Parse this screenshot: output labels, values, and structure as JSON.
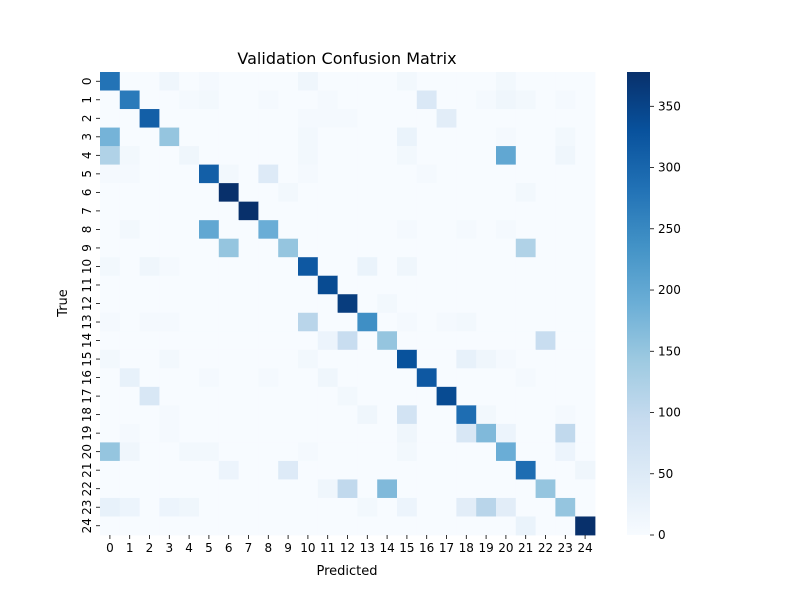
{
  "chart_data": {
    "type": "heatmap",
    "title": "Validation Confusion Matrix",
    "xlabel": "Predicted",
    "ylabel": "True",
    "x_ticks": [
      "0",
      "1",
      "2",
      "3",
      "4",
      "5",
      "6",
      "7",
      "8",
      "9",
      "10",
      "11",
      "12",
      "13",
      "14",
      "15",
      "16",
      "17",
      "18",
      "19",
      "20",
      "21",
      "22",
      "23",
      "24"
    ],
    "y_ticks": [
      "0",
      "1",
      "2",
      "3",
      "4",
      "5",
      "6",
      "7",
      "8",
      "9",
      "10",
      "11",
      "12",
      "13",
      "14",
      "15",
      "16",
      "17",
      "18",
      "19",
      "20",
      "21",
      "22",
      "23",
      "24"
    ],
    "colorbar": {
      "min": 0,
      "max": 378,
      "ticks": [
        0,
        50,
        100,
        150,
        200,
        250,
        300,
        350
      ]
    },
    "colormap": "Blues",
    "matrix": [
      [
        280,
        0,
        0,
        15,
        0,
        5,
        0,
        0,
        0,
        0,
        15,
        0,
        0,
        0,
        0,
        10,
        0,
        0,
        0,
        0,
        10,
        0,
        0,
        0,
        0
      ],
      [
        0,
        270,
        0,
        0,
        5,
        10,
        0,
        0,
        5,
        0,
        0,
        5,
        0,
        0,
        0,
        0,
        55,
        0,
        0,
        5,
        15,
        10,
        0,
        5,
        0
      ],
      [
        0,
        0,
        310,
        0,
        0,
        0,
        0,
        0,
        0,
        0,
        5,
        5,
        5,
        0,
        0,
        0,
        0,
        40,
        0,
        0,
        0,
        0,
        0,
        0,
        0
      ],
      [
        180,
        0,
        0,
        150,
        0,
        0,
        0,
        0,
        0,
        0,
        10,
        0,
        0,
        0,
        0,
        25,
        0,
        0,
        0,
        0,
        5,
        0,
        0,
        10,
        0
      ],
      [
        120,
        10,
        0,
        0,
        15,
        0,
        0,
        0,
        0,
        0,
        10,
        0,
        0,
        0,
        0,
        10,
        0,
        0,
        0,
        0,
        200,
        0,
        0,
        15,
        0
      ],
      [
        5,
        5,
        0,
        0,
        0,
        310,
        10,
        0,
        50,
        0,
        5,
        0,
        0,
        0,
        0,
        0,
        5,
        0,
        0,
        0,
        0,
        0,
        0,
        0,
        0
      ],
      [
        0,
        0,
        0,
        0,
        0,
        0,
        378,
        0,
        0,
        10,
        0,
        0,
        0,
        0,
        0,
        0,
        0,
        0,
        0,
        0,
        0,
        10,
        0,
        0,
        0
      ],
      [
        0,
        0,
        0,
        0,
        0,
        0,
        0,
        378,
        0,
        0,
        0,
        0,
        0,
        0,
        0,
        0,
        0,
        0,
        0,
        0,
        0,
        0,
        0,
        0,
        0
      ],
      [
        0,
        10,
        0,
        0,
        0,
        200,
        0,
        0,
        190,
        0,
        0,
        0,
        0,
        0,
        0,
        5,
        0,
        0,
        5,
        0,
        5,
        0,
        0,
        0,
        0
      ],
      [
        0,
        0,
        0,
        0,
        0,
        0,
        150,
        0,
        0,
        150,
        0,
        0,
        0,
        0,
        0,
        0,
        0,
        0,
        0,
        0,
        0,
        120,
        0,
        0,
        0
      ],
      [
        10,
        0,
        15,
        5,
        0,
        0,
        0,
        0,
        0,
        0,
        320,
        0,
        0,
        25,
        0,
        15,
        0,
        0,
        0,
        0,
        0,
        0,
        0,
        0,
        0
      ],
      [
        0,
        0,
        0,
        0,
        0,
        0,
        0,
        0,
        0,
        0,
        0,
        340,
        0,
        0,
        0,
        0,
        0,
        0,
        0,
        0,
        0,
        0,
        0,
        0,
        0
      ],
      [
        0,
        0,
        0,
        0,
        0,
        0,
        0,
        0,
        0,
        0,
        0,
        0,
        360,
        0,
        10,
        0,
        0,
        0,
        0,
        0,
        0,
        0,
        0,
        0,
        0
      ],
      [
        5,
        0,
        5,
        5,
        0,
        0,
        0,
        0,
        0,
        0,
        110,
        0,
        0,
        240,
        0,
        5,
        0,
        5,
        10,
        0,
        0,
        0,
        0,
        0,
        0
      ],
      [
        0,
        0,
        0,
        0,
        0,
        0,
        0,
        0,
        0,
        0,
        0,
        20,
        90,
        0,
        150,
        0,
        0,
        0,
        0,
        0,
        0,
        0,
        90,
        0,
        0
      ],
      [
        10,
        0,
        0,
        10,
        0,
        0,
        0,
        0,
        0,
        0,
        10,
        0,
        0,
        0,
        0,
        330,
        0,
        0,
        30,
        15,
        5,
        0,
        0,
        0,
        0
      ],
      [
        0,
        30,
        0,
        0,
        0,
        5,
        0,
        0,
        5,
        0,
        0,
        15,
        0,
        0,
        0,
        0,
        320,
        0,
        0,
        0,
        0,
        5,
        0,
        0,
        0
      ],
      [
        0,
        0,
        60,
        0,
        0,
        0,
        0,
        0,
        0,
        0,
        0,
        0,
        10,
        0,
        0,
        0,
        0,
        340,
        0,
        0,
        0,
        0,
        0,
        0,
        0
      ],
      [
        0,
        0,
        0,
        5,
        0,
        0,
        0,
        0,
        0,
        0,
        0,
        0,
        0,
        15,
        0,
        70,
        0,
        0,
        290,
        10,
        0,
        0,
        0,
        5,
        0
      ],
      [
        0,
        5,
        0,
        5,
        0,
        0,
        0,
        0,
        0,
        0,
        0,
        0,
        0,
        0,
        0,
        15,
        0,
        0,
        60,
        170,
        20,
        0,
        0,
        100,
        0
      ],
      [
        150,
        15,
        0,
        0,
        10,
        10,
        0,
        0,
        0,
        0,
        5,
        0,
        0,
        0,
        0,
        10,
        0,
        0,
        0,
        0,
        190,
        0,
        0,
        20,
        0
      ],
      [
        0,
        0,
        0,
        0,
        0,
        0,
        20,
        0,
        0,
        50,
        0,
        0,
        0,
        0,
        0,
        0,
        0,
        0,
        0,
        0,
        0,
        290,
        0,
        0,
        15
      ],
      [
        0,
        0,
        0,
        0,
        0,
        0,
        0,
        0,
        0,
        0,
        0,
        15,
        100,
        0,
        170,
        0,
        0,
        0,
        0,
        0,
        0,
        0,
        150,
        0,
        0
      ],
      [
        30,
        20,
        0,
        20,
        15,
        0,
        0,
        0,
        0,
        0,
        0,
        0,
        0,
        10,
        0,
        20,
        0,
        0,
        40,
        110,
        40,
        0,
        0,
        150,
        0
      ],
      [
        0,
        0,
        0,
        0,
        0,
        0,
        0,
        0,
        0,
        0,
        0,
        0,
        0,
        0,
        0,
        0,
        0,
        0,
        0,
        0,
        0,
        25,
        0,
        0,
        378
      ]
    ]
  }
}
